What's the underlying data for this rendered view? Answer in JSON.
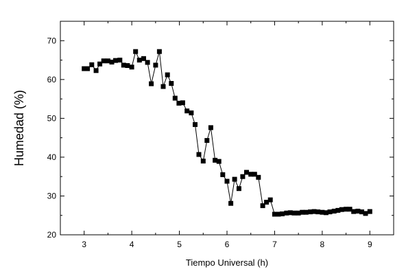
{
  "chart_data": {
    "type": "line",
    "xlabel": "Tiempo Universal (h)",
    "ylabel": "Humedad (%)",
    "xlim": [
      2.5,
      9.5
    ],
    "ylim": [
      20,
      75
    ],
    "x_ticks": [
      3,
      4,
      5,
      6,
      7,
      8,
      9
    ],
    "y_ticks": [
      20,
      30,
      40,
      50,
      60,
      70
    ],
    "grid": false,
    "legend": "none",
    "marker": "square",
    "series": [
      {
        "color": "#000000",
        "points": [
          [
            3.0,
            62.8
          ],
          [
            3.07,
            62.8
          ],
          [
            3.16,
            63.8
          ],
          [
            3.25,
            62.3
          ],
          [
            3.33,
            64.0
          ],
          [
            3.41,
            64.8
          ],
          [
            3.5,
            64.8
          ],
          [
            3.58,
            64.5
          ],
          [
            3.66,
            64.9
          ],
          [
            3.75,
            65.0
          ],
          [
            3.83,
            63.7
          ],
          [
            3.91,
            63.6
          ],
          [
            4.0,
            63.2
          ],
          [
            4.08,
            67.2
          ],
          [
            4.16,
            65.0
          ],
          [
            4.25,
            65.4
          ],
          [
            4.33,
            64.4
          ],
          [
            4.41,
            58.9
          ],
          [
            4.5,
            63.7
          ],
          [
            4.58,
            67.2
          ],
          [
            4.66,
            58.2
          ],
          [
            4.75,
            61.2
          ],
          [
            4.83,
            59.0
          ],
          [
            4.91,
            55.2
          ],
          [
            4.99,
            53.9
          ],
          [
            5.07,
            54.0
          ],
          [
            5.16,
            51.9
          ],
          [
            5.25,
            51.4
          ],
          [
            5.33,
            48.4
          ],
          [
            5.41,
            40.7
          ],
          [
            5.5,
            39.0
          ],
          [
            5.58,
            44.3
          ],
          [
            5.66,
            47.6
          ],
          [
            5.75,
            39.2
          ],
          [
            5.83,
            38.9
          ],
          [
            5.91,
            35.5
          ],
          [
            6.0,
            33.8
          ],
          [
            6.08,
            28.1
          ],
          [
            6.16,
            34.3
          ],
          [
            6.25,
            31.9
          ],
          [
            6.33,
            35.0
          ],
          [
            6.41,
            36.1
          ],
          [
            6.5,
            35.6
          ],
          [
            6.58,
            35.6
          ],
          [
            6.66,
            34.8
          ],
          [
            6.75,
            27.5
          ],
          [
            6.83,
            28.4
          ],
          [
            6.91,
            29.0
          ],
          [
            7.0,
            25.3
          ],
          [
            7.08,
            25.3
          ],
          [
            7.16,
            25.4
          ],
          [
            7.25,
            25.6
          ],
          [
            7.33,
            25.7
          ],
          [
            7.41,
            25.6
          ],
          [
            7.5,
            25.6
          ],
          [
            7.58,
            25.8
          ],
          [
            7.66,
            25.8
          ],
          [
            7.75,
            25.9
          ],
          [
            7.83,
            26.0
          ],
          [
            7.91,
            25.9
          ],
          [
            8.0,
            25.8
          ],
          [
            8.08,
            25.7
          ],
          [
            8.16,
            25.9
          ],
          [
            8.25,
            26.1
          ],
          [
            8.33,
            26.3
          ],
          [
            8.41,
            26.5
          ],
          [
            8.5,
            26.6
          ],
          [
            8.58,
            26.6
          ],
          [
            8.66,
            26.0
          ],
          [
            8.75,
            26.1
          ],
          [
            8.83,
            25.9
          ],
          [
            8.91,
            25.5
          ],
          [
            9.0,
            26.0
          ]
        ]
      }
    ]
  }
}
